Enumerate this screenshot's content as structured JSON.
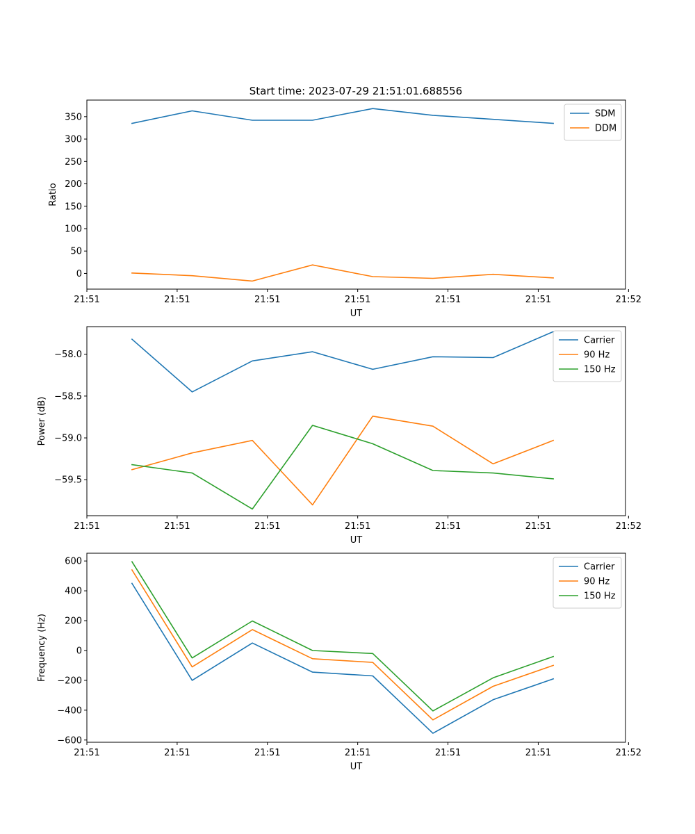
{
  "title": "Start time: 2023-07-29 21:51:01.688556",
  "chart_data": [
    {
      "type": "line",
      "xlabel": "UT",
      "ylabel": "Ratio",
      "x": [
        0,
        1,
        2,
        3,
        4,
        5,
        6,
        7
      ],
      "xlim": [
        -0.75,
        8.2
      ],
      "x_ticks": [
        -0.75,
        0.75,
        2.25,
        3.75,
        5.25,
        6.75,
        8.25
      ],
      "x_tick_labels": [
        "21:51",
        "21:51",
        "21:51",
        "21:51",
        "21:51",
        "21:51",
        "21:52"
      ],
      "ylim": [
        -35,
        387
      ],
      "y_ticks": [
        0,
        50,
        100,
        150,
        200,
        250,
        300,
        350
      ],
      "y_tick_labels": [
        "0",
        "50",
        "100",
        "150",
        "200",
        "250",
        "300",
        "350"
      ],
      "legend_position": "top-right",
      "series": [
        {
          "name": "SDM",
          "color": "#1f77b4",
          "values": [
            335,
            363,
            342,
            342,
            368,
            353,
            344,
            335
          ]
        },
        {
          "name": "DDM",
          "color": "#ff7f0e",
          "values": [
            1,
            -5,
            -17,
            19,
            -7,
            -11,
            -2,
            -10
          ]
        }
      ]
    },
    {
      "type": "line",
      "xlabel": "UT",
      "ylabel": "Power (dB)",
      "x": [
        0,
        1,
        2,
        3,
        4,
        5,
        6,
        7
      ],
      "xlim": [
        -0.75,
        8.2
      ],
      "x_ticks": [
        -0.75,
        0.75,
        2.25,
        3.75,
        5.25,
        6.75,
        8.25
      ],
      "x_tick_labels": [
        "21:51",
        "21:51",
        "21:51",
        "21:51",
        "21:51",
        "21:51",
        "21:52"
      ],
      "ylim": [
        -59.93,
        -57.67
      ],
      "y_ticks": [
        -59.5,
        -59.0,
        -58.5,
        -58.0
      ],
      "y_tick_labels": [
        "−59.5",
        "−59.0",
        "−58.5",
        "−58.0"
      ],
      "legend_position": "top-right",
      "series": [
        {
          "name": "Carrier",
          "color": "#1f77b4",
          "values": [
            -57.82,
            -58.45,
            -58.08,
            -57.97,
            -58.18,
            -58.03,
            -58.04,
            -57.73
          ]
        },
        {
          "name": "90 Hz",
          "color": "#ff7f0e",
          "values": [
            -59.38,
            -59.18,
            -59.03,
            -59.8,
            -58.74,
            -58.86,
            -59.31,
            -59.03
          ]
        },
        {
          "name": "150 Hz",
          "color": "#2ca02c",
          "values": [
            -59.32,
            -59.42,
            -59.85,
            -58.85,
            -59.07,
            -59.39,
            -59.42,
            -59.49
          ]
        }
      ]
    },
    {
      "type": "line",
      "xlabel": "UT",
      "ylabel": "Frequency (Hz)",
      "x": [
        0,
        1,
        2,
        3,
        4,
        5,
        6,
        7
      ],
      "xlim": [
        -0.75,
        8.2
      ],
      "x_ticks": [
        -0.75,
        0.75,
        2.25,
        3.75,
        5.25,
        6.75,
        8.25
      ],
      "x_tick_labels": [
        "21:51",
        "21:51",
        "21:51",
        "21:51",
        "21:51",
        "21:51",
        "21:52"
      ],
      "ylim": [
        -615,
        652
      ],
      "y_ticks": [
        -600,
        -400,
        -200,
        0,
        200,
        400,
        600
      ],
      "y_tick_labels": [
        "−600",
        "−400",
        "−200",
        "0",
        "200",
        "400",
        "600"
      ],
      "legend_position": "top-right",
      "series": [
        {
          "name": "Carrier",
          "color": "#1f77b4",
          "values": [
            450,
            -200,
            50,
            -145,
            -170,
            -555,
            -330,
            -190
          ]
        },
        {
          "name": "90 Hz",
          "color": "#ff7f0e",
          "values": [
            540,
            -110,
            140,
            -55,
            -80,
            -465,
            -240,
            -100
          ]
        },
        {
          "name": "150 Hz",
          "color": "#2ca02c",
          "values": [
            595,
            -50,
            198,
            0,
            -20,
            -405,
            -183,
            -40
          ]
        }
      ]
    }
  ]
}
